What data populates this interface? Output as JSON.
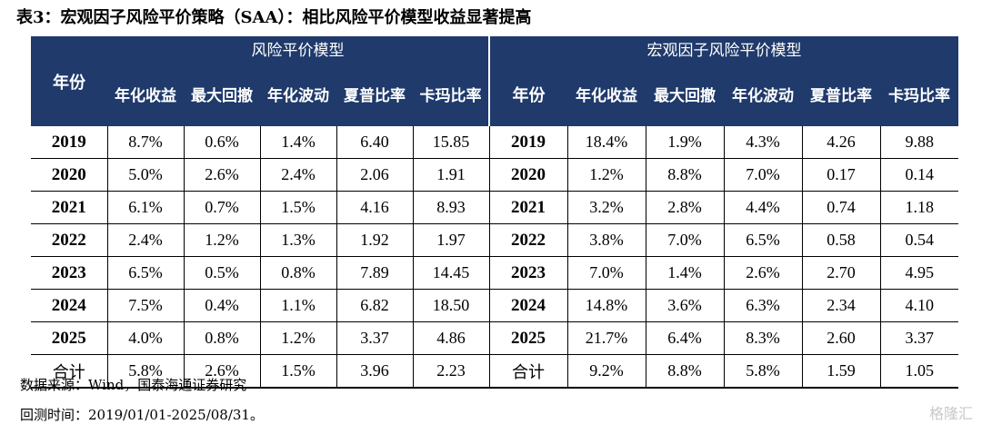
{
  "title": "表3：宏观因子风险平价策略（SAA）：相比风险平价模型收益显著提高",
  "groups": {
    "left": "风险平价模型",
    "right": "宏观因子风险平价模型"
  },
  "headers": {
    "year": "年份",
    "annual_return": "年化收益",
    "max_drawdown": "最大回撤",
    "annual_vol": "年化波动",
    "sharpe": "夏普比率",
    "calmar": "卡玛比率"
  },
  "rows": [
    {
      "year": "2019",
      "left": [
        "8.7%",
        "0.6%",
        "1.4%",
        "6.40",
        "15.85"
      ],
      "right": [
        "18.4%",
        "1.9%",
        "4.3%",
        "4.26",
        "9.88"
      ]
    },
    {
      "year": "2020",
      "left": [
        "5.0%",
        "2.6%",
        "2.4%",
        "2.06",
        "1.91"
      ],
      "right": [
        "1.2%",
        "8.8%",
        "7.0%",
        "0.17",
        "0.14"
      ]
    },
    {
      "year": "2021",
      "left": [
        "6.1%",
        "0.7%",
        "1.5%",
        "4.16",
        "8.93"
      ],
      "right": [
        "3.2%",
        "2.8%",
        "4.4%",
        "0.74",
        "1.18"
      ]
    },
    {
      "year": "2022",
      "left": [
        "2.4%",
        "1.2%",
        "1.3%",
        "1.92",
        "1.97"
      ],
      "right": [
        "3.8%",
        "7.0%",
        "6.5%",
        "0.58",
        "0.54"
      ]
    },
    {
      "year": "2023",
      "left": [
        "6.5%",
        "0.5%",
        "0.8%",
        "7.89",
        "14.45"
      ],
      "right": [
        "7.0%",
        "1.4%",
        "2.6%",
        "2.70",
        "4.95"
      ]
    },
    {
      "year": "2024",
      "left": [
        "7.5%",
        "0.4%",
        "1.1%",
        "6.82",
        "18.50"
      ],
      "right": [
        "14.8%",
        "3.6%",
        "6.3%",
        "2.34",
        "4.10"
      ]
    },
    {
      "year": "2025",
      "left": [
        "4.0%",
        "0.8%",
        "1.2%",
        "3.37",
        "4.86"
      ],
      "right": [
        "21.7%",
        "6.4%",
        "8.3%",
        "2.60",
        "3.37"
      ]
    },
    {
      "year": "合计",
      "left": [
        "5.8%",
        "2.6%",
        "1.5%",
        "3.96",
        "2.23"
      ],
      "right": [
        "9.2%",
        "8.8%",
        "5.8%",
        "1.59",
        "1.05"
      ]
    }
  ],
  "source": "数据来源：Wind，国泰海通证券研究",
  "period": "回测时间：2019/01/01-2025/08/31。",
  "watermark": "格隆汇",
  "colors": {
    "header_bg": "#1f3a6b",
    "header_text": "#ffffff"
  }
}
